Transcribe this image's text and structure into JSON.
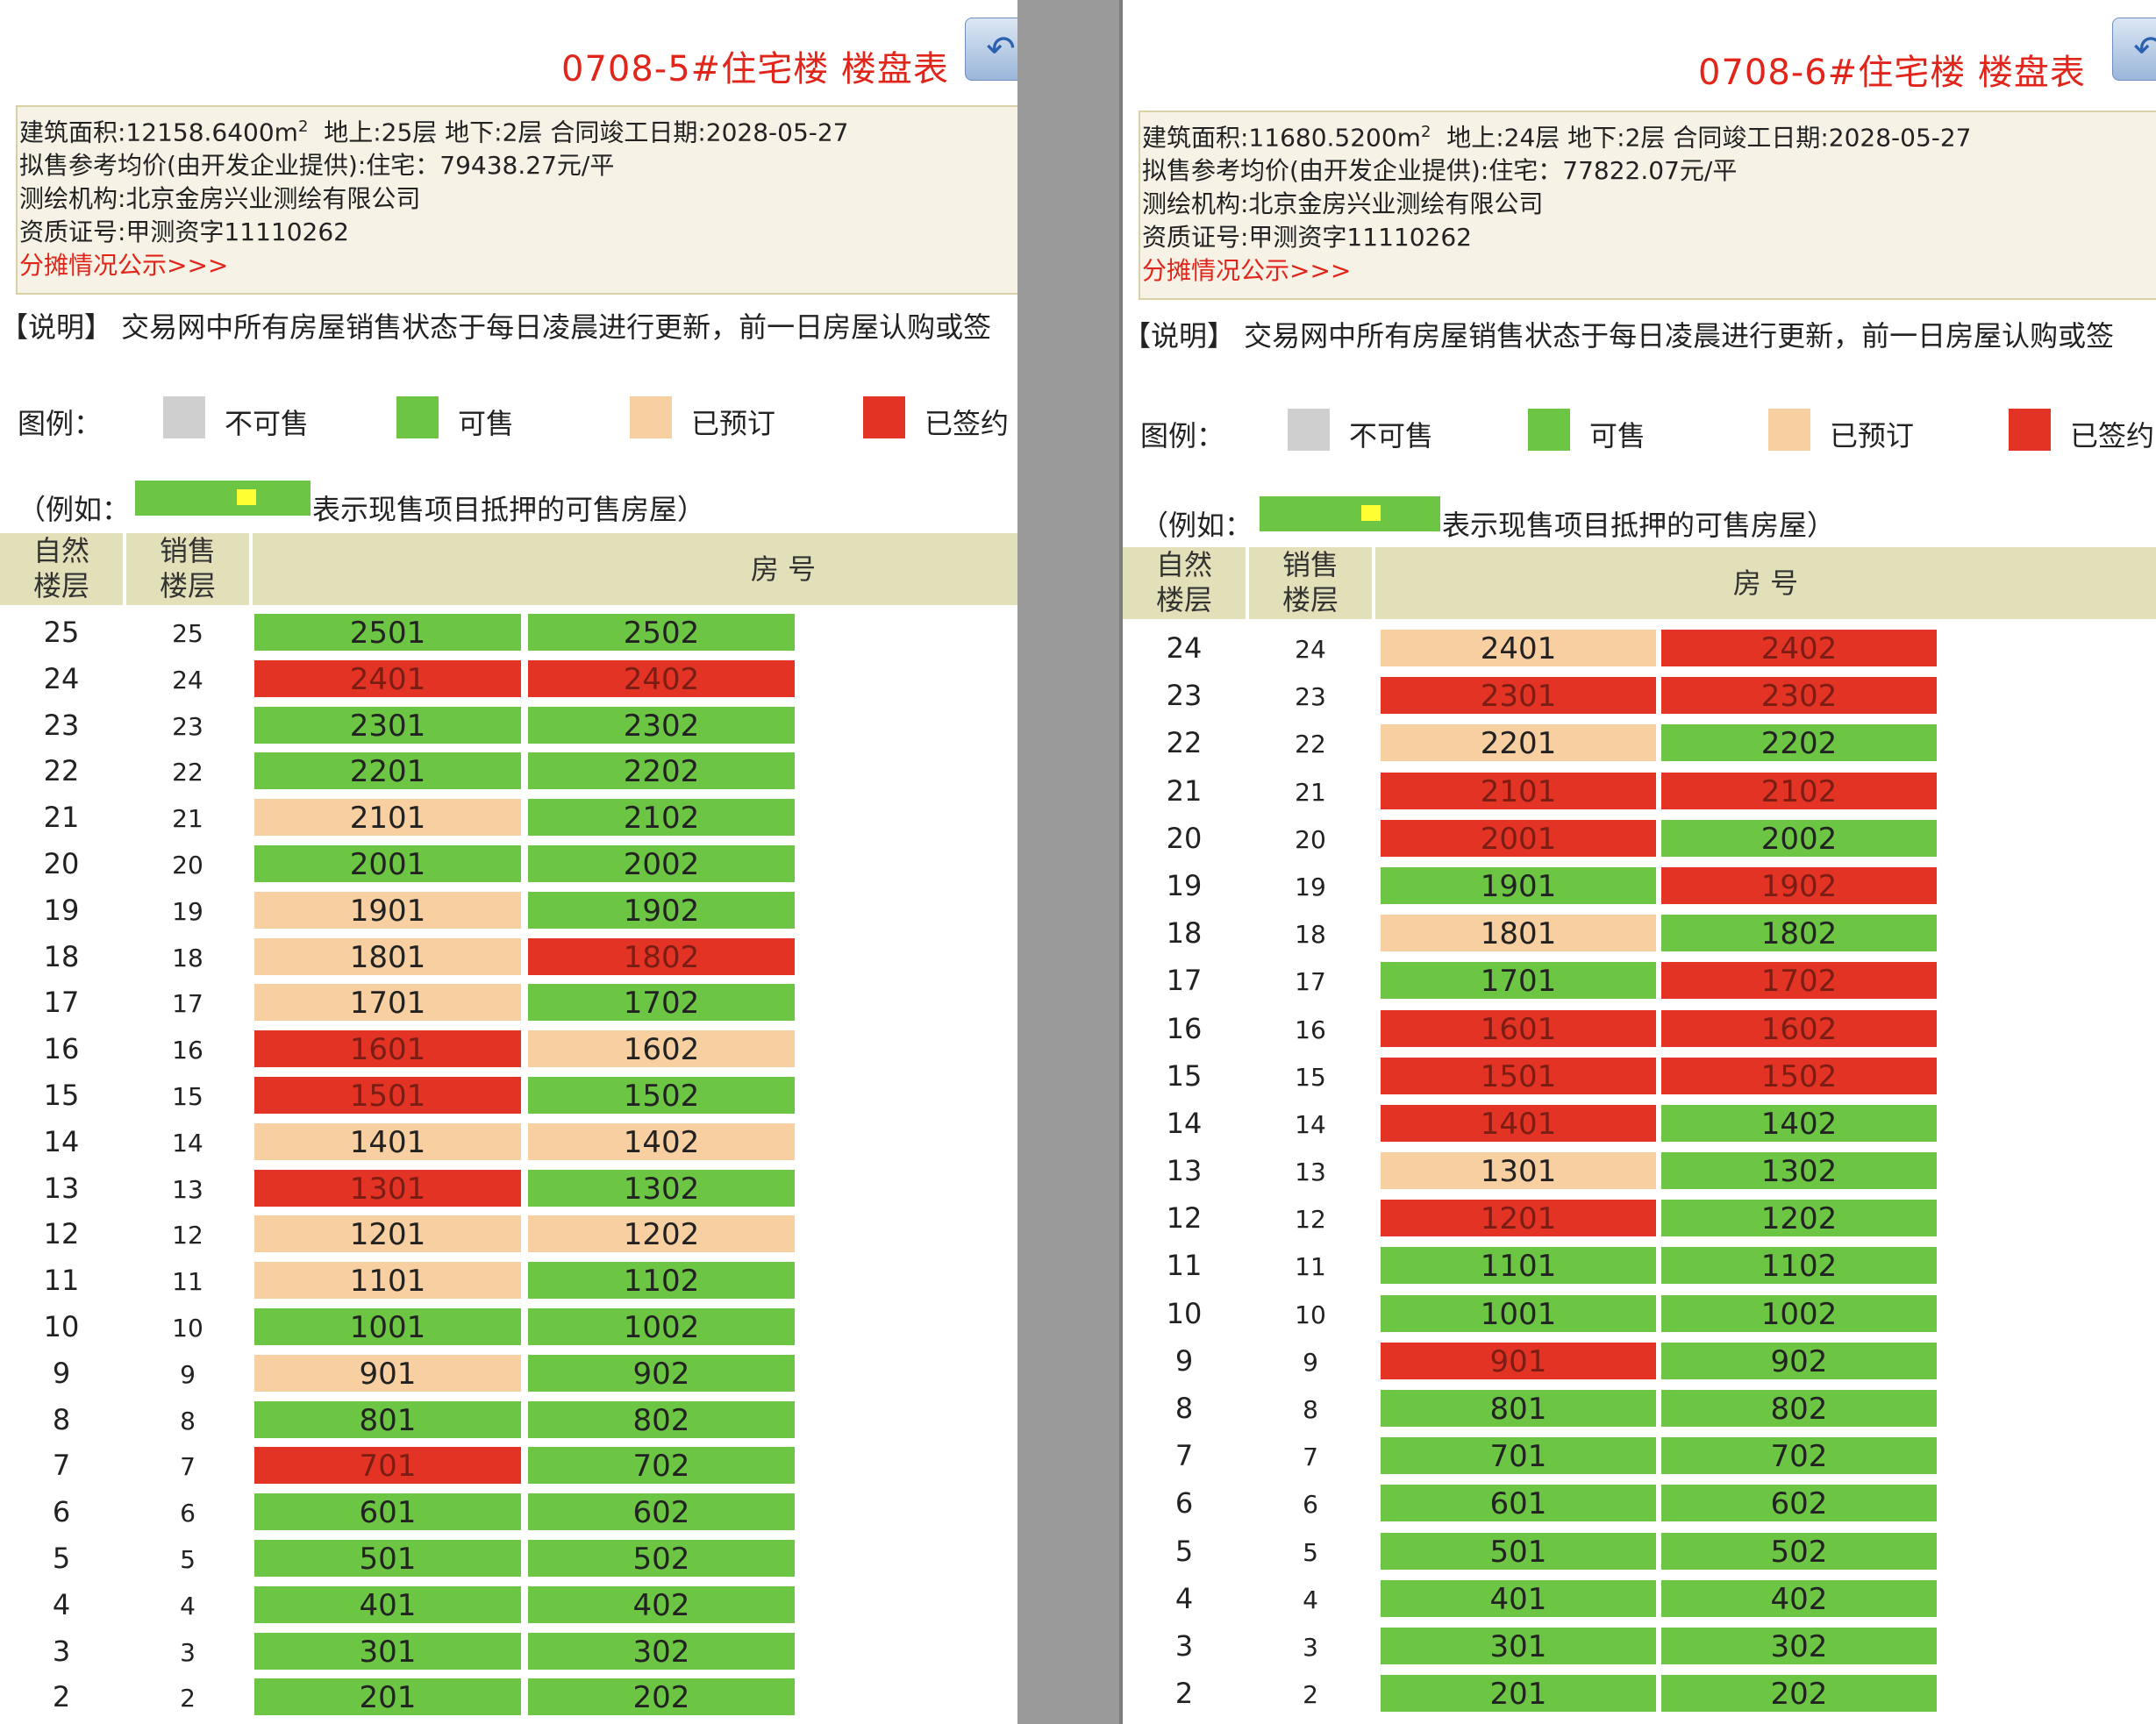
{
  "colors": {
    "unavailable": "#cfcfcf",
    "available": "#6cc644",
    "reserved": "#f7cfa1",
    "signed": "#e23325",
    "title_red": "#e1251b",
    "header_bg": "#e2e0b8"
  },
  "panels": [
    {
      "title": "0708-5#住宅楼 楼盘表",
      "back_icon": "back-arrow-icon",
      "info": {
        "area_label": "建筑面积:12158.6400m",
        "area_sup": "2",
        "floors_text": "地上:25层   地下:2层   合同竣工日期:2028-05-27",
        "price": "拟售参考均价(由开发企业提供):住宅：79438.27元/平",
        "survey_org": "测绘机构:北京金房兴业测绘有限公司",
        "cert": "资质证号:甲测资字11110262",
        "share_link": "分摊情况公示>>>"
      },
      "note": "【说明】 交易网中所有房屋销售状态于每日凌晨进行更新，前一日房屋认购或签",
      "legend": {
        "label": "图例：",
        "items": [
          "不可售",
          "可售",
          "已预订",
          "已签约"
        ]
      },
      "example": {
        "open": "（例如：",
        "rest": "表示现售项目抵押的可售房屋）"
      },
      "headers": {
        "natural_floor": [
          "自然",
          "楼层"
        ],
        "sales_floor": [
          "销售",
          "楼层"
        ],
        "room_no": "房 号"
      },
      "rows": [
        {
          "floor": "25",
          "sales_floor": "25",
          "units": [
            {
              "no": "2501",
              "status": "available"
            },
            {
              "no": "2502",
              "status": "available"
            }
          ]
        },
        {
          "floor": "24",
          "sales_floor": "24",
          "units": [
            {
              "no": "2401",
              "status": "signed"
            },
            {
              "no": "2402",
              "status": "signed"
            }
          ]
        },
        {
          "floor": "23",
          "sales_floor": "23",
          "units": [
            {
              "no": "2301",
              "status": "available"
            },
            {
              "no": "2302",
              "status": "available"
            }
          ]
        },
        {
          "floor": "22",
          "sales_floor": "22",
          "units": [
            {
              "no": "2201",
              "status": "available"
            },
            {
              "no": "2202",
              "status": "available"
            }
          ]
        },
        {
          "floor": "21",
          "sales_floor": "21",
          "units": [
            {
              "no": "2101",
              "status": "reserved"
            },
            {
              "no": "2102",
              "status": "available"
            }
          ]
        },
        {
          "floor": "20",
          "sales_floor": "20",
          "units": [
            {
              "no": "2001",
              "status": "available"
            },
            {
              "no": "2002",
              "status": "available"
            }
          ]
        },
        {
          "floor": "19",
          "sales_floor": "19",
          "units": [
            {
              "no": "1901",
              "status": "reserved"
            },
            {
              "no": "1902",
              "status": "available"
            }
          ]
        },
        {
          "floor": "18",
          "sales_floor": "18",
          "units": [
            {
              "no": "1801",
              "status": "reserved"
            },
            {
              "no": "1802",
              "status": "signed"
            }
          ]
        },
        {
          "floor": "17",
          "sales_floor": "17",
          "units": [
            {
              "no": "1701",
              "status": "reserved"
            },
            {
              "no": "1702",
              "status": "available"
            }
          ]
        },
        {
          "floor": "16",
          "sales_floor": "16",
          "units": [
            {
              "no": "1601",
              "status": "signed"
            },
            {
              "no": "1602",
              "status": "reserved"
            }
          ]
        },
        {
          "floor": "15",
          "sales_floor": "15",
          "units": [
            {
              "no": "1501",
              "status": "signed"
            },
            {
              "no": "1502",
              "status": "available"
            }
          ]
        },
        {
          "floor": "14",
          "sales_floor": "14",
          "units": [
            {
              "no": "1401",
              "status": "reserved"
            },
            {
              "no": "1402",
              "status": "reserved"
            }
          ]
        },
        {
          "floor": "13",
          "sales_floor": "13",
          "units": [
            {
              "no": "1301",
              "status": "signed"
            },
            {
              "no": "1302",
              "status": "available"
            }
          ]
        },
        {
          "floor": "12",
          "sales_floor": "12",
          "units": [
            {
              "no": "1201",
              "status": "reserved"
            },
            {
              "no": "1202",
              "status": "reserved"
            }
          ]
        },
        {
          "floor": "11",
          "sales_floor": "11",
          "units": [
            {
              "no": "1101",
              "status": "reserved"
            },
            {
              "no": "1102",
              "status": "available"
            }
          ]
        },
        {
          "floor": "10",
          "sales_floor": "10",
          "units": [
            {
              "no": "1001",
              "status": "available"
            },
            {
              "no": "1002",
              "status": "available"
            }
          ]
        },
        {
          "floor": "9",
          "sales_floor": "9",
          "units": [
            {
              "no": "901",
              "status": "reserved"
            },
            {
              "no": "902",
              "status": "available"
            }
          ]
        },
        {
          "floor": "8",
          "sales_floor": "8",
          "units": [
            {
              "no": "801",
              "status": "available"
            },
            {
              "no": "802",
              "status": "available"
            }
          ]
        },
        {
          "floor": "7",
          "sales_floor": "7",
          "units": [
            {
              "no": "701",
              "status": "signed"
            },
            {
              "no": "702",
              "status": "available"
            }
          ]
        },
        {
          "floor": "6",
          "sales_floor": "6",
          "units": [
            {
              "no": "601",
              "status": "available"
            },
            {
              "no": "602",
              "status": "available"
            }
          ]
        },
        {
          "floor": "5",
          "sales_floor": "5",
          "units": [
            {
              "no": "501",
              "status": "available"
            },
            {
              "no": "502",
              "status": "available"
            }
          ]
        },
        {
          "floor": "4",
          "sales_floor": "4",
          "units": [
            {
              "no": "401",
              "status": "available"
            },
            {
              "no": "402",
              "status": "available"
            }
          ]
        },
        {
          "floor": "3",
          "sales_floor": "3",
          "units": [
            {
              "no": "301",
              "status": "available"
            },
            {
              "no": "302",
              "status": "available"
            }
          ]
        },
        {
          "floor": "2",
          "sales_floor": "2",
          "units": [
            {
              "no": "201",
              "status": "available"
            },
            {
              "no": "202",
              "status": "available"
            }
          ]
        }
      ]
    },
    {
      "title": "0708-6#住宅楼 楼盘表",
      "back_icon": "back-arrow-icon",
      "info": {
        "area_label": "建筑面积:11680.5200m",
        "area_sup": "2",
        "floors_text": "地上:24层   地下:2层   合同竣工日期:2028-05-27",
        "price": "拟售参考均价(由开发企业提供):住宅：77822.07元/平",
        "survey_org": "测绘机构:北京金房兴业测绘有限公司",
        "cert": "资质证号:甲测资字11110262",
        "share_link": "分摊情况公示>>>"
      },
      "note": "【说明】 交易网中所有房屋销售状态于每日凌晨进行更新，前一日房屋认购或签",
      "legend": {
        "label": "图例：",
        "items": [
          "不可售",
          "可售",
          "已预订",
          "已签约"
        ]
      },
      "example": {
        "open": "（例如：",
        "rest": "表示现售项目抵押的可售房屋）"
      },
      "headers": {
        "natural_floor": [
          "自然",
          "楼层"
        ],
        "sales_floor": [
          "销售",
          "楼层"
        ],
        "room_no": "房 号"
      },
      "rows": [
        {
          "floor": "24",
          "sales_floor": "24",
          "units": [
            {
              "no": "2401",
              "status": "reserved"
            },
            {
              "no": "2402",
              "status": "signed"
            }
          ]
        },
        {
          "floor": "23",
          "sales_floor": "23",
          "units": [
            {
              "no": "2301",
              "status": "signed"
            },
            {
              "no": "2302",
              "status": "signed"
            }
          ]
        },
        {
          "floor": "22",
          "sales_floor": "22",
          "units": [
            {
              "no": "2201",
              "status": "reserved"
            },
            {
              "no": "2202",
              "status": "available"
            }
          ]
        },
        {
          "floor": "21",
          "sales_floor": "21",
          "units": [
            {
              "no": "2101",
              "status": "signed"
            },
            {
              "no": "2102",
              "status": "signed"
            }
          ]
        },
        {
          "floor": "20",
          "sales_floor": "20",
          "units": [
            {
              "no": "2001",
              "status": "signed"
            },
            {
              "no": "2002",
              "status": "available"
            }
          ]
        },
        {
          "floor": "19",
          "sales_floor": "19",
          "units": [
            {
              "no": "1901",
              "status": "available"
            },
            {
              "no": "1902",
              "status": "signed"
            }
          ]
        },
        {
          "floor": "18",
          "sales_floor": "18",
          "units": [
            {
              "no": "1801",
              "status": "reserved"
            },
            {
              "no": "1802",
              "status": "available"
            }
          ]
        },
        {
          "floor": "17",
          "sales_floor": "17",
          "units": [
            {
              "no": "1701",
              "status": "available"
            },
            {
              "no": "1702",
              "status": "signed"
            }
          ]
        },
        {
          "floor": "16",
          "sales_floor": "16",
          "units": [
            {
              "no": "1601",
              "status": "signed"
            },
            {
              "no": "1602",
              "status": "signed"
            }
          ]
        },
        {
          "floor": "15",
          "sales_floor": "15",
          "units": [
            {
              "no": "1501",
              "status": "signed"
            },
            {
              "no": "1502",
              "status": "signed"
            }
          ]
        },
        {
          "floor": "14",
          "sales_floor": "14",
          "units": [
            {
              "no": "1401",
              "status": "signed"
            },
            {
              "no": "1402",
              "status": "available"
            }
          ]
        },
        {
          "floor": "13",
          "sales_floor": "13",
          "units": [
            {
              "no": "1301",
              "status": "reserved"
            },
            {
              "no": "1302",
              "status": "available"
            }
          ]
        },
        {
          "floor": "12",
          "sales_floor": "12",
          "units": [
            {
              "no": "1201",
              "status": "signed"
            },
            {
              "no": "1202",
              "status": "available"
            }
          ]
        },
        {
          "floor": "11",
          "sales_floor": "11",
          "units": [
            {
              "no": "1101",
              "status": "available"
            },
            {
              "no": "1102",
              "status": "available"
            }
          ]
        },
        {
          "floor": "10",
          "sales_floor": "10",
          "units": [
            {
              "no": "1001",
              "status": "available"
            },
            {
              "no": "1002",
              "status": "available"
            }
          ]
        },
        {
          "floor": "9",
          "sales_floor": "9",
          "units": [
            {
              "no": "901",
              "status": "signed"
            },
            {
              "no": "902",
              "status": "available"
            }
          ]
        },
        {
          "floor": "8",
          "sales_floor": "8",
          "units": [
            {
              "no": "801",
              "status": "available"
            },
            {
              "no": "802",
              "status": "available"
            }
          ]
        },
        {
          "floor": "7",
          "sales_floor": "7",
          "units": [
            {
              "no": "701",
              "status": "available"
            },
            {
              "no": "702",
              "status": "available"
            }
          ]
        },
        {
          "floor": "6",
          "sales_floor": "6",
          "units": [
            {
              "no": "601",
              "status": "available"
            },
            {
              "no": "602",
              "status": "available"
            }
          ]
        },
        {
          "floor": "5",
          "sales_floor": "5",
          "units": [
            {
              "no": "501",
              "status": "available"
            },
            {
              "no": "502",
              "status": "available"
            }
          ]
        },
        {
          "floor": "4",
          "sales_floor": "4",
          "units": [
            {
              "no": "401",
              "status": "available"
            },
            {
              "no": "402",
              "status": "available"
            }
          ]
        },
        {
          "floor": "3",
          "sales_floor": "3",
          "units": [
            {
              "no": "301",
              "status": "available"
            },
            {
              "no": "302",
              "status": "available"
            }
          ]
        },
        {
          "floor": "2",
          "sales_floor": "2",
          "units": [
            {
              "no": "201",
              "status": "available"
            },
            {
              "no": "202",
              "status": "available"
            }
          ]
        }
      ]
    }
  ]
}
